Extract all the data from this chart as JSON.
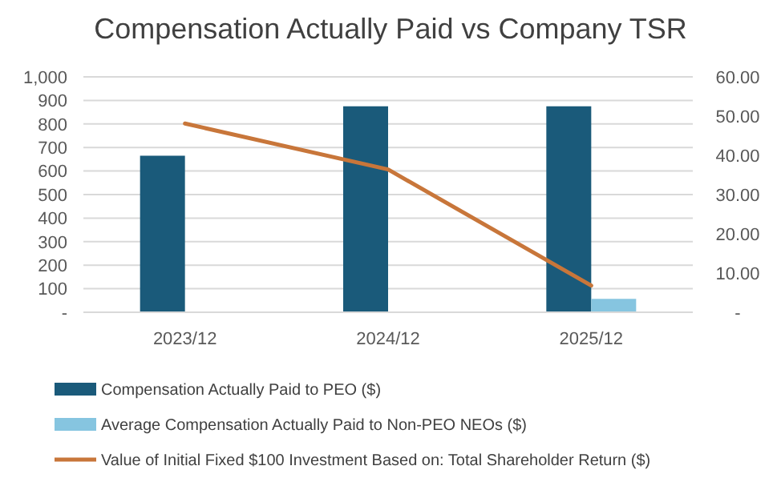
{
  "chart_data": {
    "type": "bar",
    "title": "Compensation Actually Paid vs Company TSR",
    "categories": [
      "2023/12",
      "2024/12",
      "2025/12"
    ],
    "series": [
      {
        "name": "Compensation Actually Paid to PEO ($)",
        "color": "#1a5a7a",
        "values": [
          665,
          875,
          875
        ]
      },
      {
        "name": "Average Compensation Actually Paid to Non-PEO NEOs ($)",
        "color": "#86c5e0",
        "values": [
          null,
          null,
          57
        ]
      },
      {
        "name": "Value of Initial Fixed $100 Investment Based on: Total Shareholder Return ($)",
        "type": "line",
        "axis": "y2",
        "color": "#c8763a",
        "values": [
          48.1,
          36.4,
          6.8
        ]
      }
    ],
    "ylim": [
      0,
      1000
    ],
    "yticks": [
      {
        "value": 0,
        "label": "-"
      },
      100,
      200,
      300,
      400,
      500,
      600,
      700,
      800,
      900,
      {
        "value": 1000,
        "label": "1,000"
      }
    ],
    "y2lim": [
      0,
      60
    ],
    "y2ticks": [
      {
        "value": 0,
        "label": "-"
      },
      {
        "value": 10,
        "label": "10.00"
      },
      {
        "value": 20,
        "label": "20.00"
      },
      {
        "value": 30,
        "label": "30.00"
      },
      {
        "value": 40,
        "label": "40.00"
      },
      {
        "value": 50,
        "label": "50.00"
      },
      {
        "value": 60,
        "label": "60.00"
      }
    ],
    "grid": "y",
    "legend": "bottom"
  }
}
